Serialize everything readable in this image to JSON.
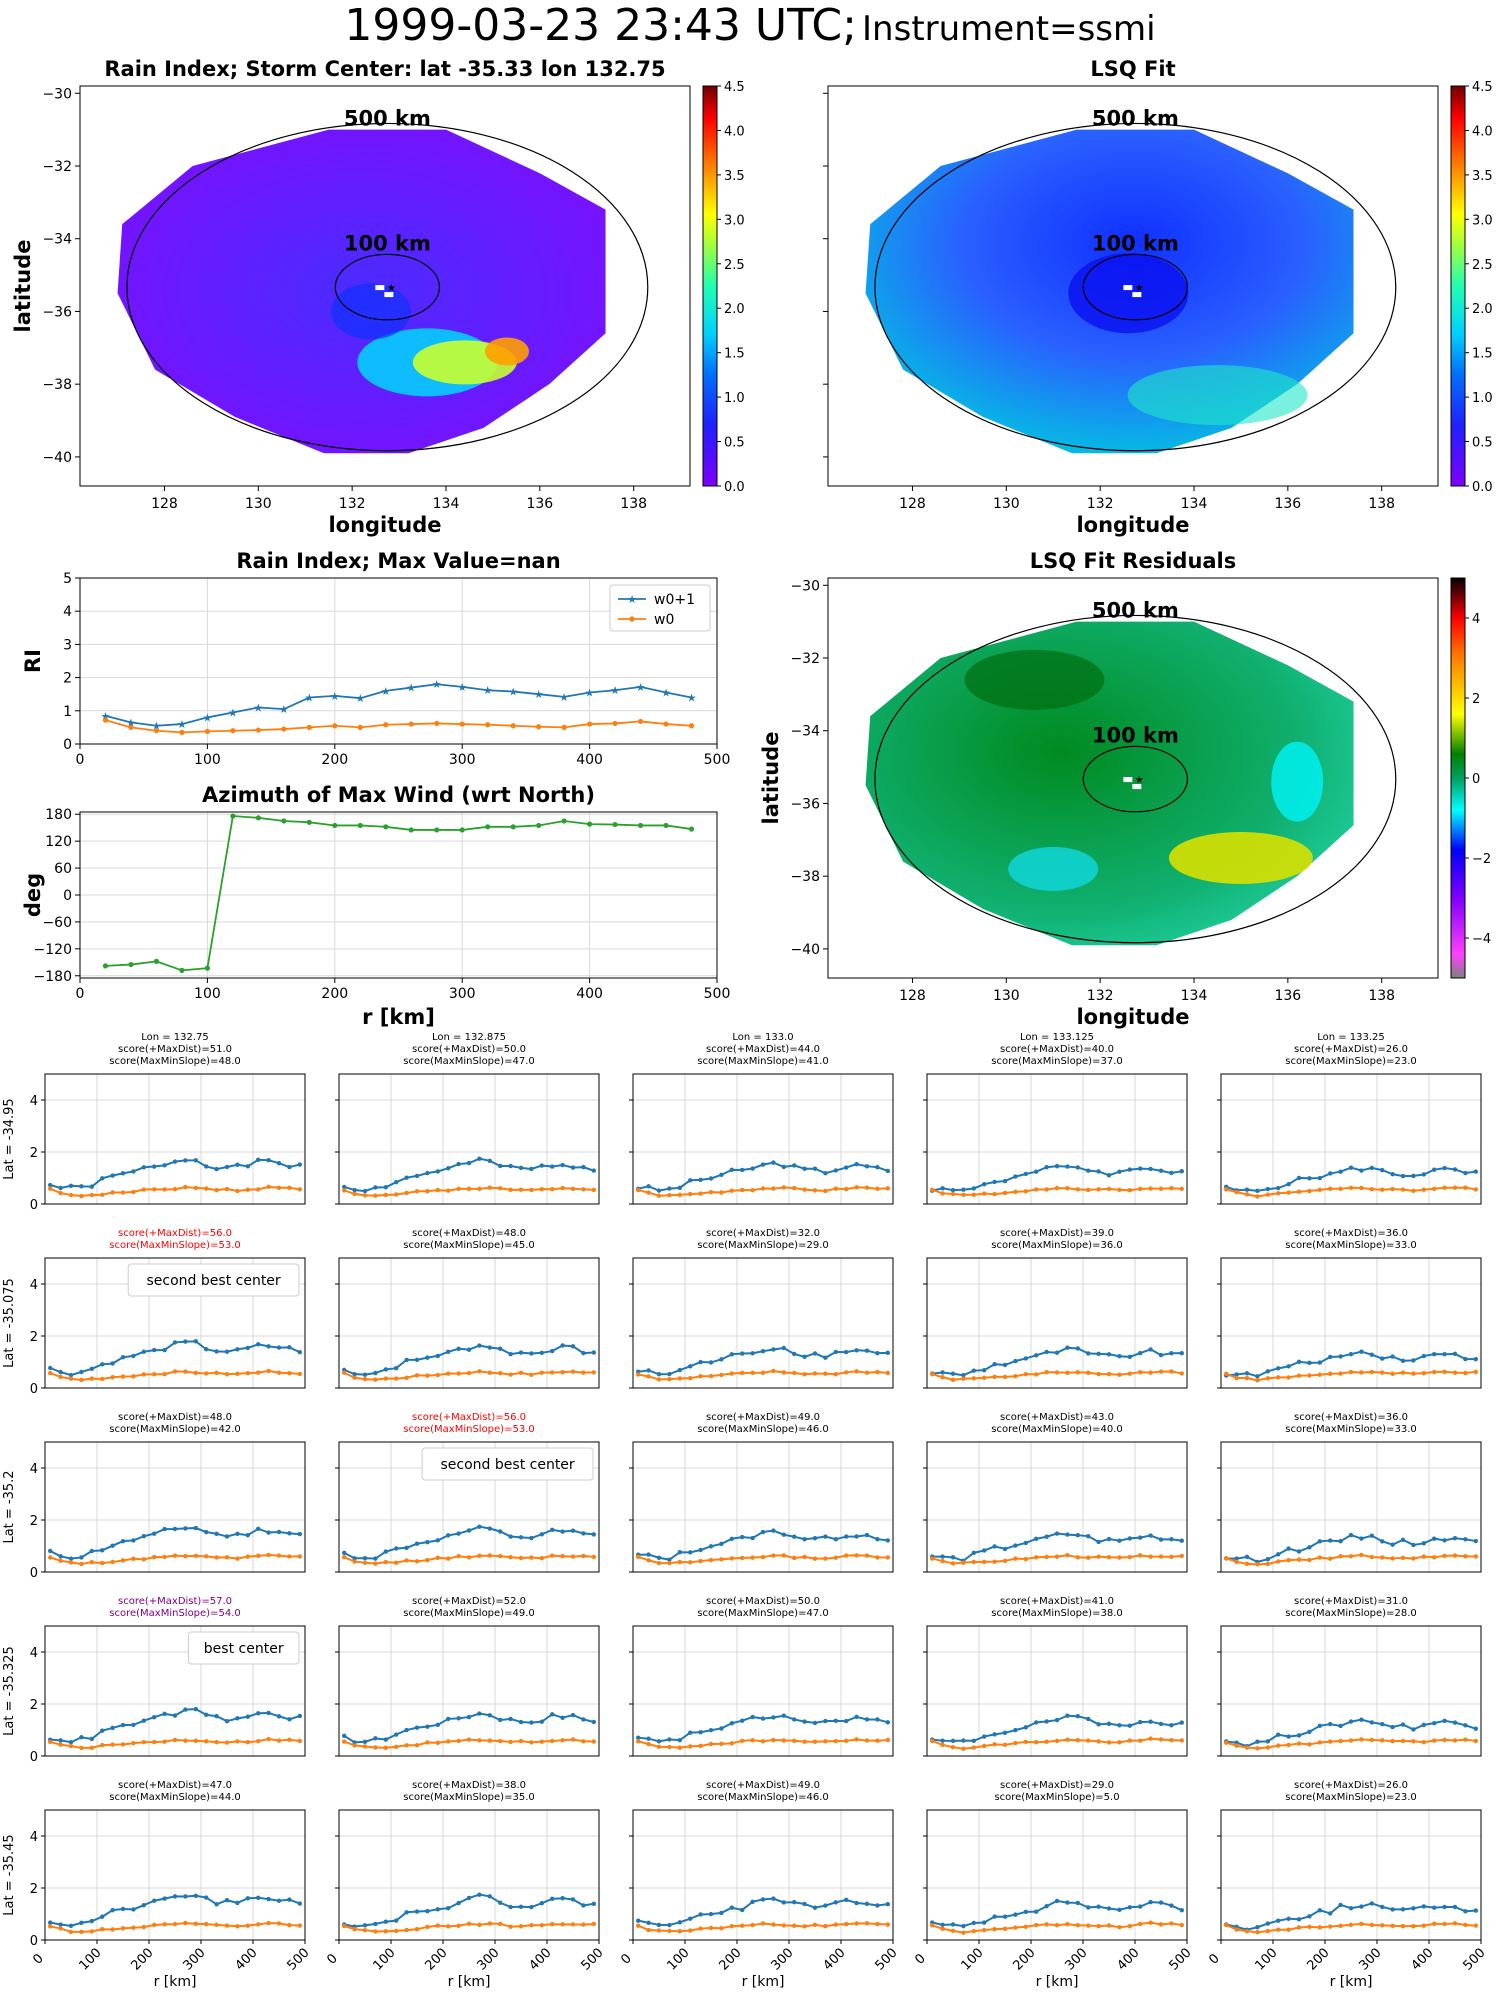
{
  "figure": {
    "time": "1999-03-23 23:43 UTC;",
    "instrument": "Instrument=ssmi"
  },
  "colors": {
    "w0p1": "#1f77b4",
    "w0": "#ff7f0e",
    "azimuth": "#2ca02c",
    "red_note": "#ff0000",
    "purple_note": "#800080",
    "grid": "#d9d9d9"
  },
  "maps": [
    {
      "title": "Rain Index; Storm Center: lat -35.33 lon 132.75",
      "xlabel": "longitude",
      "ylabel": "latitude",
      "xticks": [
        "128",
        "130",
        "132",
        "134",
        "136",
        "138"
      ],
      "yticks": [
        "−30",
        "−32",
        "−34",
        "−36",
        "−38",
        "−40"
      ],
      "ring_outer": "500 km",
      "ring_inner": "100 km",
      "colorbar": "rainbow",
      "cbticks": [
        "0.0",
        "0.5",
        "1.0",
        "1.5",
        "2.0",
        "2.5",
        "3.0",
        "3.5",
        "4.0",
        "4.5"
      ]
    },
    {
      "title": "LSQ Fit",
      "xlabel": "longitude",
      "ylabel": "",
      "xticks": [
        "128",
        "130",
        "132",
        "134",
        "136",
        "138"
      ],
      "yticks": [
        "",
        "",
        "",
        "",
        "",
        ""
      ],
      "ring_outer": "500 km",
      "ring_inner": "100 km",
      "colorbar": "rainbow",
      "cbticks": [
        "0.0",
        "0.5",
        "1.0",
        "1.5",
        "2.0",
        "2.5",
        "3.0",
        "3.5",
        "4.0",
        "4.5"
      ]
    },
    {
      "title": "LSQ Fit Residuals",
      "xlabel": "longitude",
      "ylabel": "latitude",
      "xticks": [
        "128",
        "130",
        "132",
        "134",
        "136",
        "138"
      ],
      "yticks": [
        "−30",
        "−32",
        "−34",
        "−36",
        "−38",
        "−40"
      ],
      "ring_outer": "500 km",
      "ring_inner": "100 km",
      "colorbar": "diverging",
      "cbticks": [
        "−4",
        "−2",
        "0",
        "2",
        "4"
      ]
    }
  ],
  "chart_data": [
    {
      "type": "heatmap",
      "title": "Rain Index; Storm Center: lat -35.33 lon 132.75",
      "xlabel": "longitude",
      "ylabel": "latitude",
      "xlim": [
        126.2,
        139.2
      ],
      "ylim": [
        -40.8,
        -29.8
      ],
      "colorbar_range": [
        0,
        4.5
      ],
      "storm_center": {
        "lat": -35.33,
        "lon": 132.75
      },
      "annotations": [
        "500 km",
        "100 km"
      ]
    },
    {
      "type": "heatmap",
      "title": "LSQ Fit",
      "xlabel": "longitude",
      "xlim": [
        126.2,
        139.2
      ],
      "ylim": [
        -40.8,
        -29.8
      ],
      "colorbar_range": [
        0,
        4.5
      ],
      "annotations": [
        "500 km",
        "100 km"
      ]
    },
    {
      "type": "line",
      "title": "Rain Index; Max Value=nan",
      "xlabel": "",
      "ylabel": "RI",
      "xlim": [
        0,
        500
      ],
      "ylim": [
        0,
        5
      ],
      "xticks": [
        "0",
        "100",
        "200",
        "300",
        "400",
        "500"
      ],
      "yticks": [
        "0",
        "1",
        "2",
        "3",
        "4",
        "5"
      ],
      "legend": "top-right",
      "grid": true,
      "x": [
        20,
        40,
        60,
        80,
        100,
        120,
        140,
        160,
        180,
        200,
        220,
        240,
        260,
        280,
        300,
        320,
        340,
        360,
        380,
        400,
        420,
        440,
        460,
        480
      ],
      "series": [
        {
          "name": "w0+1",
          "values": [
            0.85,
            0.65,
            0.55,
            0.6,
            0.8,
            0.95,
            1.1,
            1.05,
            1.4,
            1.45,
            1.38,
            1.6,
            1.7,
            1.8,
            1.72,
            1.62,
            1.58,
            1.5,
            1.42,
            1.55,
            1.62,
            1.72,
            1.55,
            1.4
          ]
        },
        {
          "name": "w0",
          "values": [
            0.72,
            0.5,
            0.4,
            0.35,
            0.38,
            0.4,
            0.42,
            0.45,
            0.5,
            0.55,
            0.5,
            0.58,
            0.6,
            0.62,
            0.6,
            0.58,
            0.55,
            0.52,
            0.5,
            0.6,
            0.62,
            0.68,
            0.6,
            0.55
          ]
        }
      ]
    },
    {
      "type": "line",
      "title": "Azimuth of Max Wind (wrt North)",
      "xlabel": "r [km]",
      "ylabel": "deg",
      "xlim": [
        0,
        500
      ],
      "ylim": [
        -185,
        185
      ],
      "xticks": [
        "0",
        "100",
        "200",
        "300",
        "400",
        "500"
      ],
      "yticks": [
        "180",
        "120",
        "60",
        "0",
        "−60",
        "−120",
        "−180"
      ],
      "grid": true,
      "x": [
        20,
        40,
        60,
        80,
        100,
        120,
        140,
        160,
        180,
        200,
        220,
        240,
        260,
        280,
        300,
        320,
        340,
        360,
        380,
        400,
        420,
        440,
        460,
        480
      ],
      "values": [
        -158,
        -155,
        -148,
        -168,
        -163,
        176,
        172,
        165,
        162,
        155,
        155,
        152,
        145,
        145,
        145,
        152,
        152,
        155,
        165,
        158,
        157,
        155,
        155,
        147
      ]
    },
    {
      "type": "heatmap",
      "title": "LSQ Fit Residuals",
      "xlabel": "longitude",
      "ylabel": "latitude",
      "xlim": [
        126.2,
        139.2
      ],
      "ylim": [
        -40.8,
        -29.8
      ],
      "colorbar_range": [
        -5,
        5
      ],
      "annotations": [
        "500 km",
        "100 km"
      ]
    },
    {
      "type": "line",
      "description_grid": "5x5 small multiples",
      "xlabel": "r [km]",
      "xlim": [
        0,
        500
      ],
      "ylim": [
        0,
        5
      ],
      "xticks": [
        "0",
        "100",
        "200",
        "300",
        "400",
        "500"
      ],
      "yticks": [
        "0",
        "2",
        "4"
      ],
      "lons": [
        "Lon = 132.75",
        "Lon = 132.875",
        "Lon = 133.0",
        "Lon = 133.125",
        "Lon = 133.25"
      ],
      "lats": [
        "Lat = -34.95",
        "Lat = -35.075",
        "Lat = -35.2",
        "Lat = -35.325",
        "Lat = -35.45"
      ],
      "cells": [
        [
          {
            "l1": "score(+MaxDist)=51.0",
            "l2": "score(MaxMinSlope)=48.0",
            "color": "black",
            "note": "",
            "seed": 1
          },
          {
            "l1": "score(+MaxDist)=50.0",
            "l2": "score(MaxMinSlope)=47.0",
            "color": "black",
            "note": "",
            "seed": 2
          },
          {
            "l1": "score(+MaxDist)=44.0",
            "l2": "score(MaxMinSlope)=41.0",
            "color": "black",
            "note": "",
            "seed": 3
          },
          {
            "l1": "score(+MaxDist)=40.0",
            "l2": "score(MaxMinSlope)=37.0",
            "color": "black",
            "note": "",
            "seed": 4
          },
          {
            "l1": "score(+MaxDist)=26.0",
            "l2": "score(MaxMinSlope)=23.0",
            "color": "black",
            "note": "",
            "seed": 5
          }
        ],
        [
          {
            "l1": "score(+MaxDist)=56.0",
            "l2": "score(MaxMinSlope)=53.0",
            "color": "red",
            "note": "second best center",
            "seed": 6
          },
          {
            "l1": "score(+MaxDist)=48.0",
            "l2": "score(MaxMinSlope)=45.0",
            "color": "black",
            "note": "",
            "seed": 7
          },
          {
            "l1": "score(+MaxDist)=32.0",
            "l2": "score(MaxMinSlope)=29.0",
            "color": "black",
            "note": "",
            "seed": 8
          },
          {
            "l1": "score(+MaxDist)=39.0",
            "l2": "score(MaxMinSlope)=36.0",
            "color": "black",
            "note": "",
            "seed": 9
          },
          {
            "l1": "score(+MaxDist)=36.0",
            "l2": "score(MaxMinSlope)=33.0",
            "color": "black",
            "note": "",
            "seed": 10
          }
        ],
        [
          {
            "l1": "score(+MaxDist)=48.0",
            "l2": "score(MaxMinSlope)=42.0",
            "color": "black",
            "note": "",
            "seed": 11
          },
          {
            "l1": "score(+MaxDist)=56.0",
            "l2": "score(MaxMinSlope)=53.0",
            "color": "red",
            "note": "second best center",
            "seed": 12
          },
          {
            "l1": "score(+MaxDist)=49.0",
            "l2": "score(MaxMinSlope)=46.0",
            "color": "black",
            "note": "",
            "seed": 13
          },
          {
            "l1": "score(+MaxDist)=43.0",
            "l2": "score(MaxMinSlope)=40.0",
            "color": "black",
            "note": "",
            "seed": 14
          },
          {
            "l1": "score(+MaxDist)=36.0",
            "l2": "score(MaxMinSlope)=33.0",
            "color": "black",
            "note": "",
            "seed": 15
          }
        ],
        [
          {
            "l1": "score(+MaxDist)=57.0",
            "l2": "score(MaxMinSlope)=54.0",
            "color": "purple",
            "note": "best center",
            "seed": 16
          },
          {
            "l1": "score(+MaxDist)=52.0",
            "l2": "score(MaxMinSlope)=49.0",
            "color": "black",
            "note": "",
            "seed": 17
          },
          {
            "l1": "score(+MaxDist)=50.0",
            "l2": "score(MaxMinSlope)=47.0",
            "color": "black",
            "note": "",
            "seed": 18
          },
          {
            "l1": "score(+MaxDist)=41.0",
            "l2": "score(MaxMinSlope)=38.0",
            "color": "black",
            "note": "",
            "seed": 19
          },
          {
            "l1": "score(+MaxDist)=31.0",
            "l2": "score(MaxMinSlope)=28.0",
            "color": "black",
            "note": "",
            "seed": 20
          }
        ],
        [
          {
            "l1": "score(+MaxDist)=47.0",
            "l2": "score(MaxMinSlope)=44.0",
            "color": "black",
            "note": "",
            "seed": 21
          },
          {
            "l1": "score(+MaxDist)=38.0",
            "l2": "score(MaxMinSlope)=35.0",
            "color": "black",
            "note": "",
            "seed": 22
          },
          {
            "l1": "score(+MaxDist)=49.0",
            "l2": "score(MaxMinSlope)=46.0",
            "color": "black",
            "note": "",
            "seed": 23
          },
          {
            "l1": "score(+MaxDist)=29.0",
            "l2": "score(MaxMinSlope)=5.0",
            "color": "black",
            "note": "",
            "seed": 24
          },
          {
            "l1": "score(+MaxDist)=26.0",
            "l2": "score(MaxMinSlope)=23.0",
            "color": "black",
            "note": "",
            "seed": 25
          }
        ]
      ]
    }
  ]
}
